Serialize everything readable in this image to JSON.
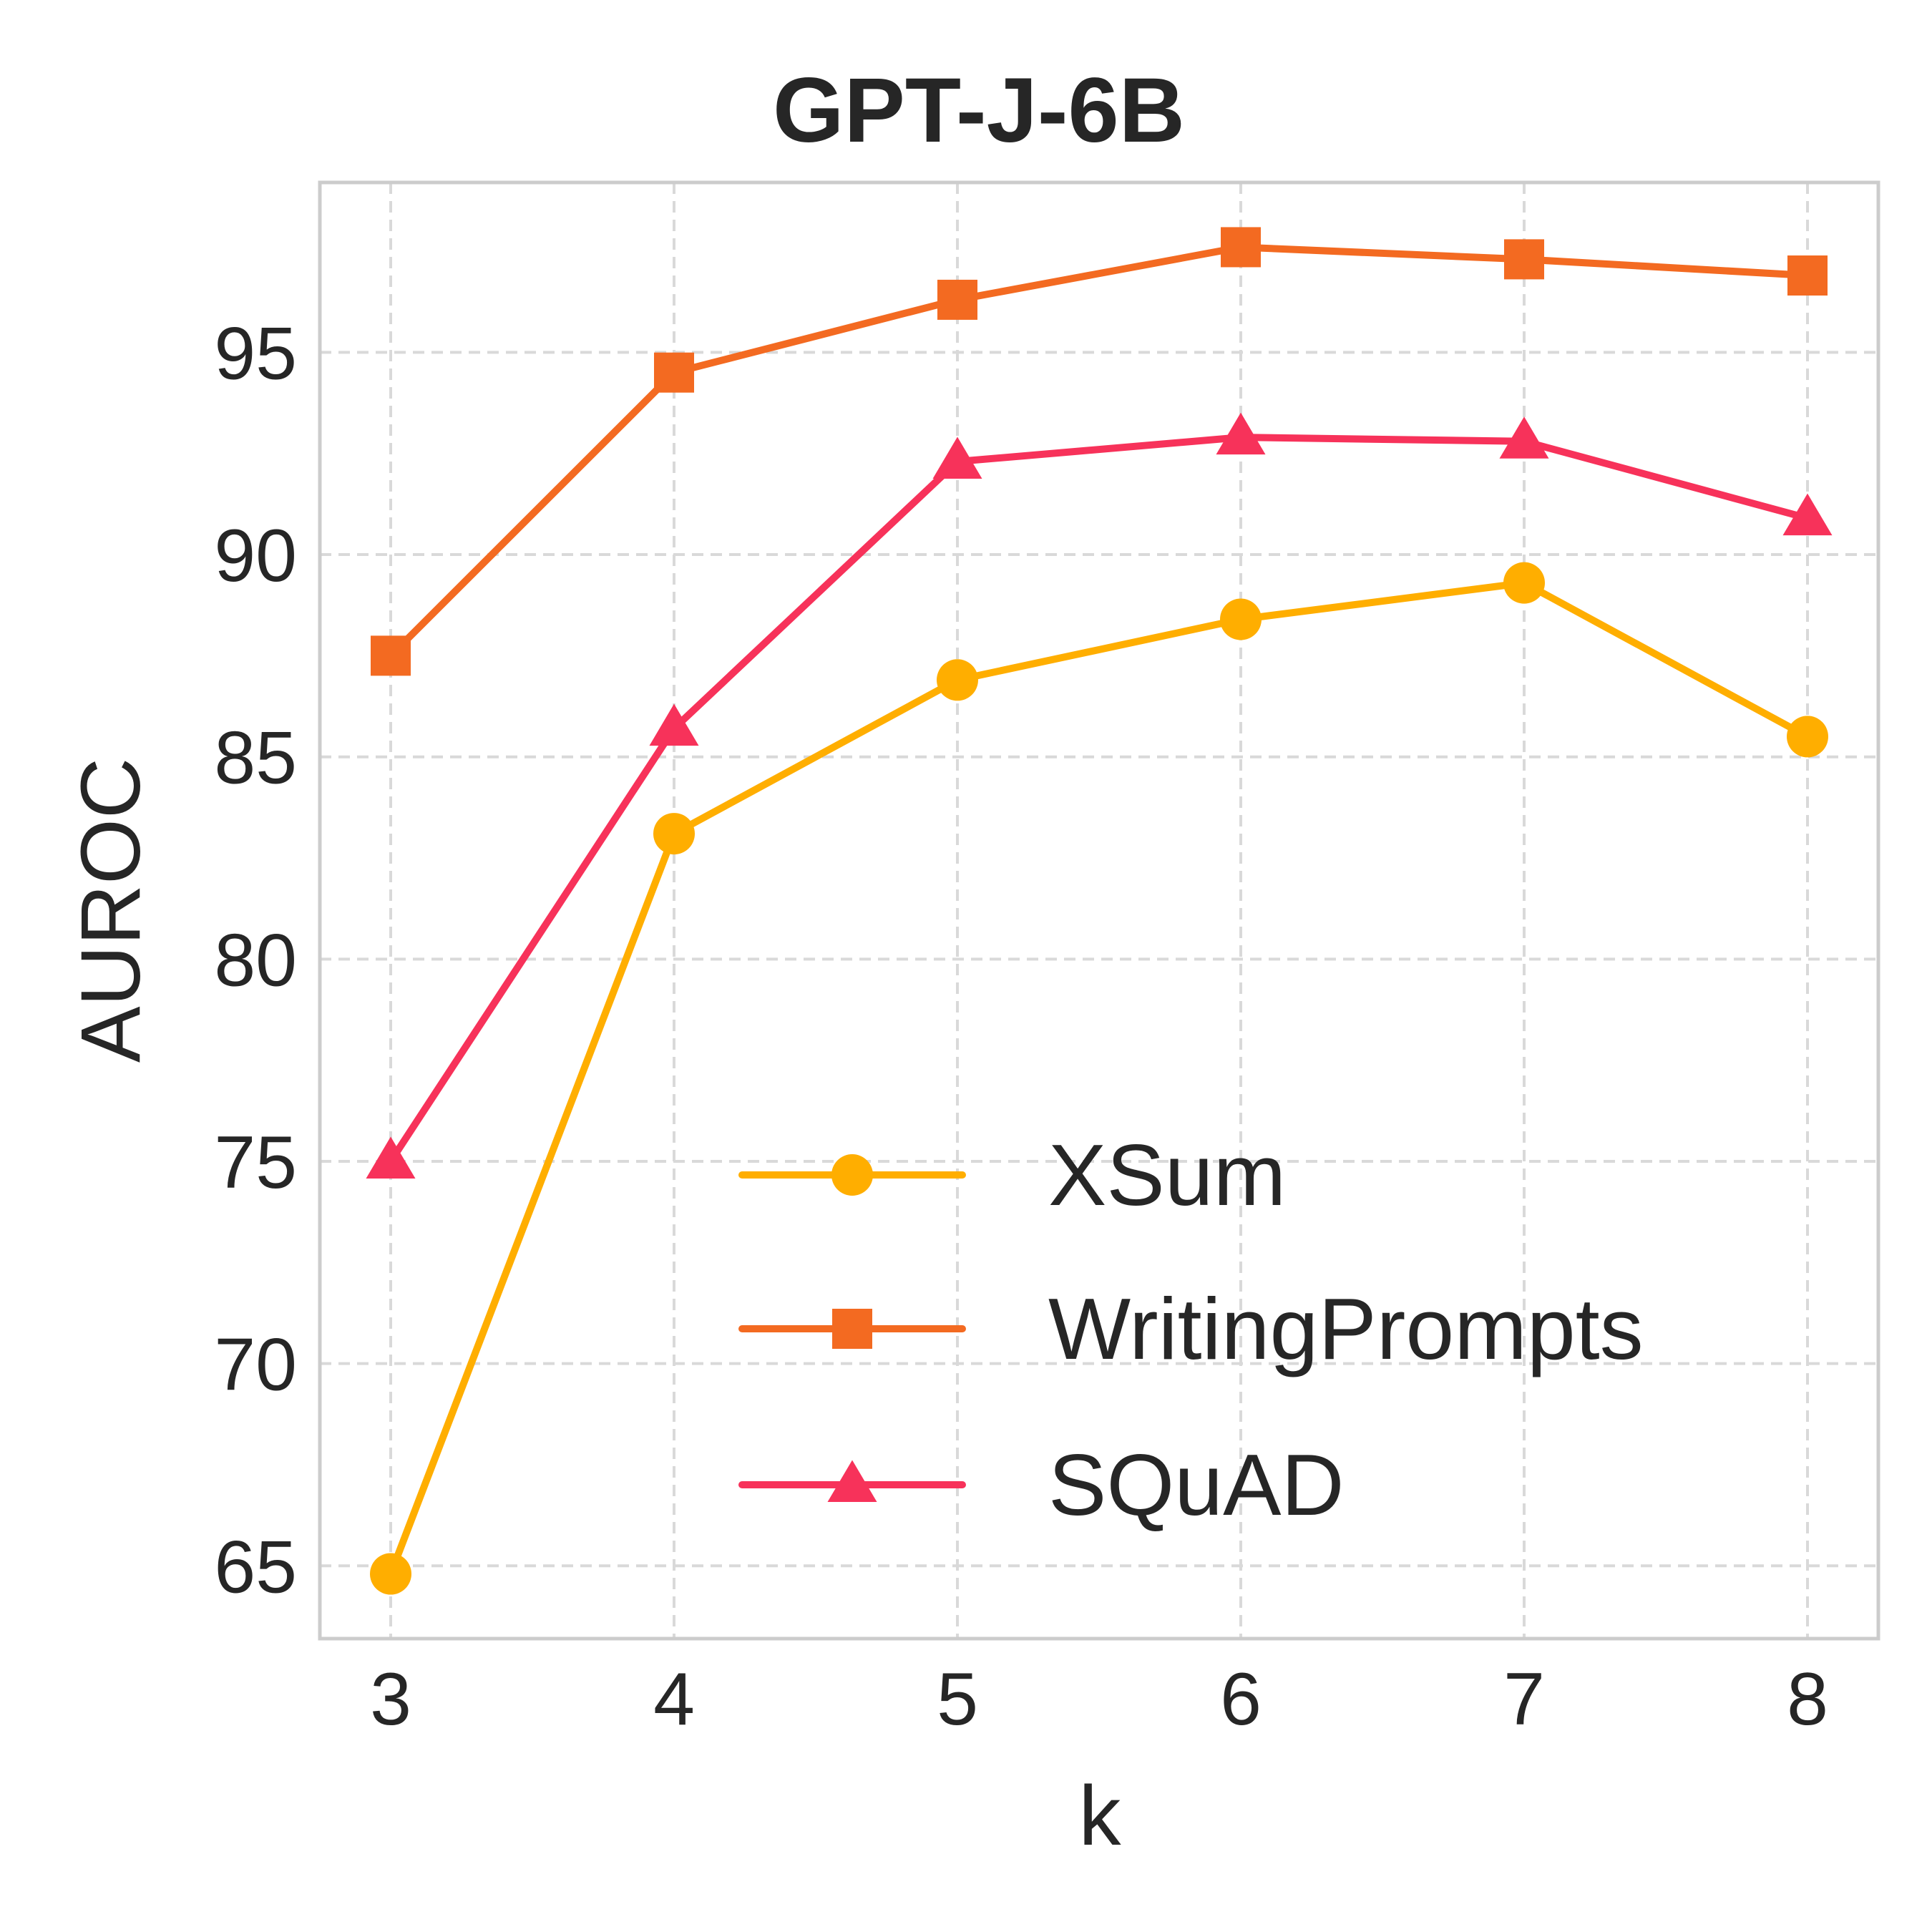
{
  "chart_data": {
    "type": "line",
    "title": "GPT-J-6B",
    "xlabel": "k",
    "ylabel": "AUROC",
    "x": [
      3,
      4,
      5,
      6,
      7,
      8
    ],
    "xticks": [
      "3",
      "4",
      "5",
      "6",
      "7",
      "8"
    ],
    "yticks": [
      "65",
      "70",
      "75",
      "80",
      "85",
      "90",
      "95"
    ],
    "ytick_values": [
      65,
      70,
      75,
      80,
      85,
      90,
      95
    ],
    "xlim": [
      2.75,
      8.25
    ],
    "ylim": [
      63.2,
      99.2
    ],
    "grid": true,
    "legend_position": "lower-right",
    "series": [
      {
        "name": "XSum",
        "marker": "circle",
        "color": "#ffae00",
        "values": [
          64.8,
          83.1,
          86.9,
          88.4,
          89.3,
          85.5
        ]
      },
      {
        "name": "WritingPrompts",
        "marker": "square",
        "color": "#f36a21",
        "values": [
          87.5,
          94.5,
          96.3,
          97.6,
          97.3,
          96.9
        ]
      },
      {
        "name": "SQuAD",
        "marker": "triangle",
        "color": "#f7325a",
        "values": [
          75.0,
          85.7,
          92.3,
          92.9,
          92.8,
          90.9
        ]
      }
    ]
  }
}
